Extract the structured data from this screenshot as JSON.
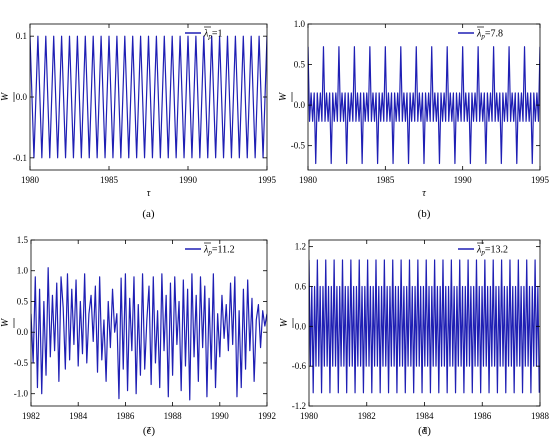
{
  "chart_data": [
    {
      "type": "line",
      "panel_label": "(a)",
      "legend": "λp=1",
      "legend_symbol": "λ",
      "legend_sub": "p",
      "legend_value": "=1",
      "xlabel": "τ",
      "ylabel": "W",
      "xlim": [
        1980,
        1995
      ],
      "ylim": [
        -0.12,
        0.12
      ],
      "xticks": [
        1980,
        1985,
        1990,
        1995
      ],
      "xtick_labels": [
        "1980",
        "1985",
        "1990",
        "1995"
      ],
      "yticks": [
        -0.1,
        0.0,
        0.1
      ],
      "ytick_labels": [
        "-0.1",
        "0.0",
        "0.1"
      ],
      "series_color": "#1f1fb4",
      "signal": {
        "kind": "periodic",
        "x_start": 1980,
        "x_end": 1995,
        "period": 0.5,
        "pattern": [
          0.1,
          -0.1
        ]
      }
    },
    {
      "type": "line",
      "panel_label": "(b)",
      "legend": "λp=7.8",
      "legend_symbol": "λ",
      "legend_sub": "p",
      "legend_value": "=7.8",
      "xlabel": "τ",
      "ylabel": "W",
      "xlim": [
        1980,
        1995
      ],
      "ylim": [
        -0.8,
        1.0
      ],
      "xticks": [
        1980,
        1985,
        1990,
        1995
      ],
      "xtick_labels": [
        "1980",
        "1985",
        "1990",
        "1995"
      ],
      "yticks": [
        -0.5,
        0.0,
        0.5,
        1.0
      ],
      "ytick_labels": [
        "-0.5",
        "0.0",
        "0.5",
        "1.0"
      ],
      "series_color": "#1f1fb4",
      "signal": {
        "kind": "periodic",
        "x_start": 1980,
        "x_end": 1995,
        "period": 1.0,
        "pattern": [
          0.72,
          -0.2,
          0.15,
          -0.2,
          0.15,
          -0.72,
          0.15,
          -0.2,
          0.15,
          -0.2
        ]
      }
    },
    {
      "type": "line",
      "panel_label": "(c)",
      "legend": "λp=11.2",
      "legend_symbol": "λ",
      "legend_sub": "p",
      "legend_value": "=11.2",
      "xlabel": "τ",
      "ylabel": "W",
      "xlim": [
        1982,
        1992
      ],
      "ylim": [
        -1.2,
        1.5
      ],
      "xticks": [
        1982,
        1984,
        1986,
        1988,
        1990,
        1992
      ],
      "xtick_labels": [
        "1982",
        "1984",
        "1986",
        "1988",
        "1990",
        "1992"
      ],
      "yticks": [
        -1.0,
        -0.5,
        0.0,
        0.5,
        1.0,
        1.5
      ],
      "ytick_labels": [
        "-1.0",
        "-0.5",
        "0.0",
        "0.5",
        "1.0",
        "1.5"
      ],
      "series_color": "#1f1fb4",
      "signal": {
        "kind": "samples",
        "x_start": 1982,
        "x_end": 1992,
        "values": [
          0.3,
          -0.5,
          0.9,
          -0.9,
          0.7,
          -1.0,
          0.5,
          -0.7,
          1.05,
          -0.4,
          0.6,
          -0.3,
          0.8,
          -0.8,
          0.9,
          0.4,
          -0.6,
          0.95,
          -0.45,
          0.7,
          -0.2,
          0.85,
          -0.55,
          0.5,
          -0.35,
          0.95,
          -0.5,
          0.3,
          0.6,
          -0.15,
          0.75,
          -0.65,
          0.9,
          -0.45,
          0.2,
          -0.8,
          0.5,
          -0.25,
          0.7,
          0.0,
          0.3,
          -1.08,
          0.88,
          -0.6,
          0.95,
          -0.95,
          0.55,
          -0.3,
          0.9,
          -1.0,
          0.45,
          -0.7,
          0.95,
          -0.6,
          0.2,
          0.75,
          -0.85,
          0.9,
          -0.5,
          0.35,
          -0.9,
          0.95,
          -0.3,
          0.6,
          -1.05,
          0.8,
          -0.7,
          0.9,
          -0.2,
          0.5,
          -0.95,
          0.85,
          -0.55,
          0.7,
          -1.1,
          0.95,
          -0.4,
          0.6,
          -0.8,
          0.9,
          -0.25,
          0.75,
          -1.05,
          0.55,
          -0.6,
          0.95,
          -0.9,
          0.3,
          -0.4,
          0.6,
          -0.1,
          0.45,
          -0.3,
          0.8,
          -0.2,
          0.9,
          -1.05,
          0.35,
          -0.9,
          0.7,
          -0.6,
          0.85,
          -0.3,
          0.55,
          -0.8,
          0.2,
          0.45,
          -0.25,
          0.35,
          0.1,
          0.3
        ]
      }
    },
    {
      "type": "line",
      "panel_label": "(d)",
      "legend": "λp=13.2",
      "legend_symbol": "λ",
      "legend_sub": "p",
      "legend_value": "=13.2",
      "xlabel": "τ",
      "ylabel": "W",
      "xlim": [
        1980,
        1988
      ],
      "ylim": [
        -1.2,
        1.3
      ],
      "xticks": [
        1980,
        1982,
        1984,
        1986,
        1988
      ],
      "xtick_labels": [
        "1980",
        "1982",
        "1984",
        "1986",
        "1988"
      ],
      "yticks": [
        -1.2,
        -0.6,
        0.0,
        0.6,
        1.2
      ],
      "ytick_labels": [
        "-1.2",
        "-0.6",
        "0.0",
        "0.6",
        "1.2"
      ],
      "series_color": "#1f1fb4",
      "signal": {
        "kind": "periodic",
        "x_start": 1980,
        "x_end": 1988,
        "period": 0.58,
        "pattern": [
          1.0,
          -0.6,
          0.6,
          -1.0,
          0.6,
          -0.6,
          1.0,
          -0.6,
          0.6,
          -1.0,
          0.6,
          -0.6
        ]
      }
    }
  ]
}
